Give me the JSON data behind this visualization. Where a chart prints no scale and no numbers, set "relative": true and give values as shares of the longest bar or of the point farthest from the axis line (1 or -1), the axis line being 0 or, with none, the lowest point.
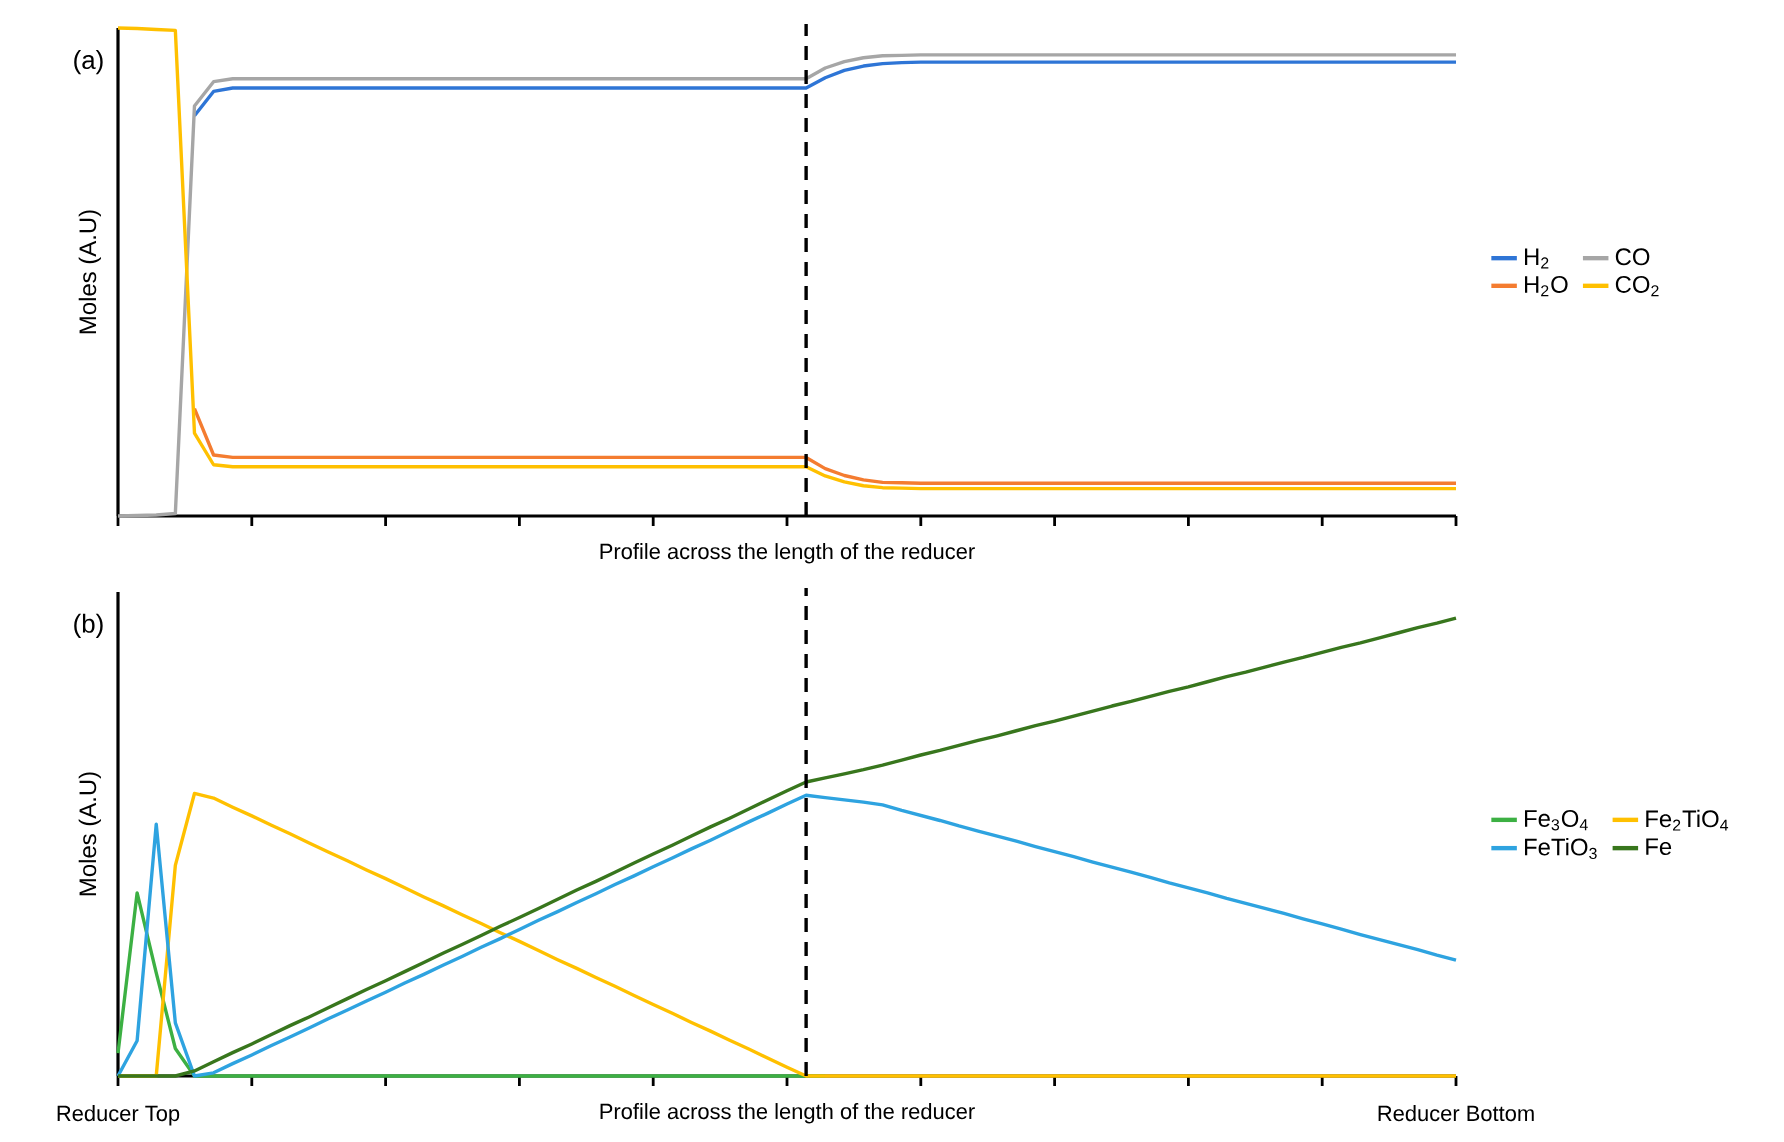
{
  "chart_data": [
    {
      "type": "line",
      "relative": true,
      "xlabel": "Profile across the length of the reducer",
      "ylabel": "Moles (A.U)",
      "annotations": [
        "(a)"
      ],
      "categories": [
        null,
        null,
        null,
        null,
        null,
        null,
        null,
        null,
        null,
        null,
        null,
        null,
        null,
        null,
        null,
        null,
        null,
        null,
        null,
        null,
        null,
        null,
        null,
        null,
        null,
        null,
        null,
        null,
        null,
        null,
        null,
        null,
        null,
        null,
        null,
        null,
        null,
        null,
        null,
        null,
        null,
        null,
        null,
        null,
        null,
        null,
        null,
        null,
        null,
        null,
        null,
        null,
        null,
        null,
        null,
        null,
        null,
        null,
        null,
        null,
        null,
        null,
        null,
        null,
        null,
        null,
        null,
        null,
        null,
        null,
        null
      ],
      "legend": "right",
      "line_style": "solid",
      "series": [
        {
          "name": "H$_{2}$",
          "color": "#2e75d6",
          "values": [
            null,
            null,
            null,
            null,
            0.82,
            0.87,
            0.877,
            0.877,
            0.877,
            0.877,
            0.877,
            0.877,
            0.877,
            0.877,
            0.877,
            0.877,
            0.877,
            0.877,
            0.877,
            0.877,
            0.877,
            0.877,
            0.877,
            0.877,
            0.877,
            0.877,
            0.877,
            0.877,
            0.877,
            0.877,
            0.877,
            0.877,
            0.877,
            0.877,
            0.877,
            0.877,
            0.877,
            0.898,
            0.913,
            0.922,
            0.927,
            0.929,
            0.93,
            0.93,
            0.93,
            0.93,
            0.93,
            0.93,
            0.93,
            0.93,
            0.93,
            0.93,
            0.93,
            0.93,
            0.93,
            0.93,
            0.93,
            0.93,
            0.93,
            0.93,
            0.93,
            0.93,
            0.93,
            0.93,
            0.93,
            0.93,
            0.93,
            0.93,
            0.93,
            0.93,
            0.93
          ]
        },
        {
          "name": "CO",
          "color": "#a6a6a6",
          "values": [
            0,
            0.001,
            0.002,
            0.005,
            0.84,
            0.89,
            0.896,
            0.896,
            0.896,
            0.896,
            0.896,
            0.896,
            0.896,
            0.896,
            0.896,
            0.896,
            0.896,
            0.896,
            0.896,
            0.896,
            0.896,
            0.896,
            0.896,
            0.896,
            0.896,
            0.896,
            0.896,
            0.896,
            0.896,
            0.896,
            0.896,
            0.896,
            0.896,
            0.896,
            0.896,
            0.896,
            0.896,
            0.918,
            0.931,
            0.939,
            0.943,
            0.944,
            0.945,
            0.945,
            0.945,
            0.945,
            0.945,
            0.945,
            0.945,
            0.945,
            0.945,
            0.945,
            0.945,
            0.945,
            0.945,
            0.945,
            0.945,
            0.945,
            0.945,
            0.945,
            0.945,
            0.945,
            0.945,
            0.945,
            0.945,
            0.945,
            0.945,
            0.945,
            0.945,
            0.945,
            0.945
          ]
        },
        {
          "name": "H$_{2}$O",
          "color": "#f47c30",
          "values": [
            null,
            null,
            null,
            null,
            0.22,
            0.125,
            0.12,
            0.12,
            0.12,
            0.12,
            0.12,
            0.12,
            0.12,
            0.12,
            0.12,
            0.12,
            0.12,
            0.12,
            0.12,
            0.12,
            0.12,
            0.12,
            0.12,
            0.12,
            0.12,
            0.12,
            0.12,
            0.12,
            0.12,
            0.12,
            0.12,
            0.12,
            0.12,
            0.12,
            0.12,
            0.12,
            0.12,
            0.097,
            0.083,
            0.074,
            0.069,
            0.068,
            0.067,
            0.067,
            0.067,
            0.067,
            0.067,
            0.067,
            0.067,
            0.067,
            0.067,
            0.067,
            0.067,
            0.067,
            0.067,
            0.067,
            0.067,
            0.067,
            0.067,
            0.067,
            0.067,
            0.067,
            0.067,
            0.067,
            0.067,
            0.067,
            0.067,
            0.067,
            0.067,
            0.067,
            0.067
          ]
        },
        {
          "name": "CO$_{2}$",
          "color": "#ffc000",
          "values": [
            1.0,
            0.999,
            0.997,
            0.995,
            0.17,
            0.105,
            0.101,
            0.101,
            0.101,
            0.101,
            0.101,
            0.101,
            0.101,
            0.101,
            0.101,
            0.101,
            0.101,
            0.101,
            0.101,
            0.101,
            0.101,
            0.101,
            0.101,
            0.101,
            0.101,
            0.101,
            0.101,
            0.101,
            0.101,
            0.101,
            0.101,
            0.101,
            0.101,
            0.101,
            0.101,
            0.101,
            0.101,
            0.082,
            0.07,
            0.062,
            0.058,
            0.057,
            0.056,
            0.056,
            0.056,
            0.056,
            0.056,
            0.056,
            0.056,
            0.056,
            0.056,
            0.056,
            0.056,
            0.056,
            0.056,
            0.056,
            0.056,
            0.056,
            0.056,
            0.056,
            0.056,
            0.056,
            0.056,
            0.056,
            0.056,
            0.056,
            0.056,
            0.056,
            0.056,
            0.056,
            0.056
          ]
        }
      ]
    },
    {
      "type": "line",
      "relative": true,
      "xlabel": "Profile across the length of the reducer",
      "ylabel": "Moles (A.U)",
      "annotations": [
        "(b)"
      ],
      "categories": [
        "Reducer Top",
        null,
        null,
        null,
        null,
        null,
        null,
        null,
        null,
        null,
        null,
        null,
        null,
        null,
        null,
        null,
        null,
        null,
        null,
        null,
        null,
        null,
        null,
        null,
        null,
        null,
        null,
        null,
        null,
        null,
        null,
        null,
        null,
        null,
        null,
        null,
        null,
        null,
        null,
        null,
        null,
        null,
        null,
        null,
        null,
        null,
        null,
        null,
        null,
        null,
        null,
        null,
        null,
        null,
        null,
        null,
        null,
        null,
        null,
        null,
        null,
        null,
        null,
        null,
        null,
        null,
        null,
        null,
        null,
        null,
        "Reducer Bottom"
      ],
      "legend": "right",
      "line_style": "solid",
      "series": [
        {
          "name": "Fe$_{3}$O$_{4}$",
          "color": "#3cb043",
          "values": [
            0.05,
            0.4,
            0.225,
            0.06,
            0,
            0,
            0,
            0,
            0,
            0,
            0,
            0,
            0,
            0,
            0,
            0,
            0,
            0,
            0,
            0,
            0,
            0,
            0,
            0,
            0,
            0,
            0,
            0,
            0,
            0,
            0,
            0,
            0,
            0,
            0,
            0,
            0,
            0,
            null,
            null,
            null,
            null,
            null,
            null,
            null,
            null,
            null,
            null,
            null,
            null,
            null,
            null,
            null,
            null,
            null,
            null,
            null,
            null,
            null,
            null,
            null,
            null,
            null,
            null,
            null,
            null,
            null,
            null,
            null,
            null,
            null
          ]
        },
        {
          "name": "Fe$_{2}$TiO$_{4}$",
          "color": "#ffc000",
          "values": [
            0,
            0,
            0,
            0.46,
            0.617,
            0.607,
            0.587,
            0.568,
            0.548,
            0.529,
            0.509,
            0.489,
            0.47,
            0.45,
            0.431,
            0.411,
            0.391,
            0.372,
            0.352,
            0.333,
            0.313,
            0.294,
            0.274,
            0.254,
            0.235,
            0.215,
            0.196,
            0.176,
            0.156,
            0.137,
            0.117,
            0.098,
            0.078,
            0.059,
            0.039,
            0.019,
            0,
            0,
            0,
            0,
            0,
            0,
            0,
            0,
            0,
            0,
            0,
            0,
            0,
            0,
            0,
            0,
            0,
            0,
            0,
            0,
            0,
            0,
            0,
            0,
            0,
            0,
            0,
            0,
            0,
            0,
            0,
            0,
            0,
            0,
            0
          ]
        },
        {
          "name": "FeTiO$_{3}$",
          "color": "#2ea3e0",
          "values": [
            0,
            0.077,
            0.55,
            0.116,
            0,
            0.007,
            0.027,
            0.046,
            0.066,
            0.085,
            0.105,
            0.125,
            0.144,
            0.164,
            0.183,
            0.203,
            0.222,
            0.242,
            0.261,
            0.281,
            0.3,
            0.32,
            0.34,
            0.359,
            0.379,
            0.398,
            0.418,
            0.437,
            0.457,
            0.476,
            0.496,
            0.515,
            0.535,
            0.555,
            0.574,
            0.594,
            0.613,
            0.608,
            0.603,
            0.598,
            0.592,
            0.58,
            0.569,
            0.558,
            0.546,
            0.535,
            0.524,
            0.513,
            0.501,
            0.49,
            0.479,
            0.467,
            0.456,
            0.445,
            0.434,
            0.422,
            0.411,
            0.4,
            0.388,
            0.377,
            0.366,
            0.355,
            0.343,
            0.332,
            0.321,
            0.309,
            0.298,
            0.287,
            0.276,
            0.264,
            0.253
          ]
        },
        {
          "name": "Fe",
          "color": "#38761d",
          "values": [
            0,
            0,
            0,
            0,
            0.011,
            0.031,
            0.051,
            0.07,
            0.09,
            0.11,
            0.129,
            0.149,
            0.169,
            0.189,
            0.208,
            0.228,
            0.248,
            0.268,
            0.287,
            0.307,
            0.327,
            0.346,
            0.366,
            0.386,
            0.406,
            0.425,
            0.445,
            0.465,
            0.485,
            0.504,
            0.524,
            0.544,
            0.563,
            0.583,
            0.603,
            0.623,
            0.642,
            0.651,
            0.66,
            0.669,
            0.679,
            0.69,
            0.701,
            0.711,
            0.722,
            0.733,
            0.743,
            0.754,
            0.765,
            0.775,
            0.786,
            0.797,
            0.808,
            0.818,
            0.829,
            0.84,
            0.85,
            0.861,
            0.872,
            0.882,
            0.893,
            0.904,
            0.914,
            0.925,
            0.936,
            0.946,
            0.957,
            0.968,
            0.979,
            0.989,
            1.0
          ]
        }
      ]
    }
  ]
}
